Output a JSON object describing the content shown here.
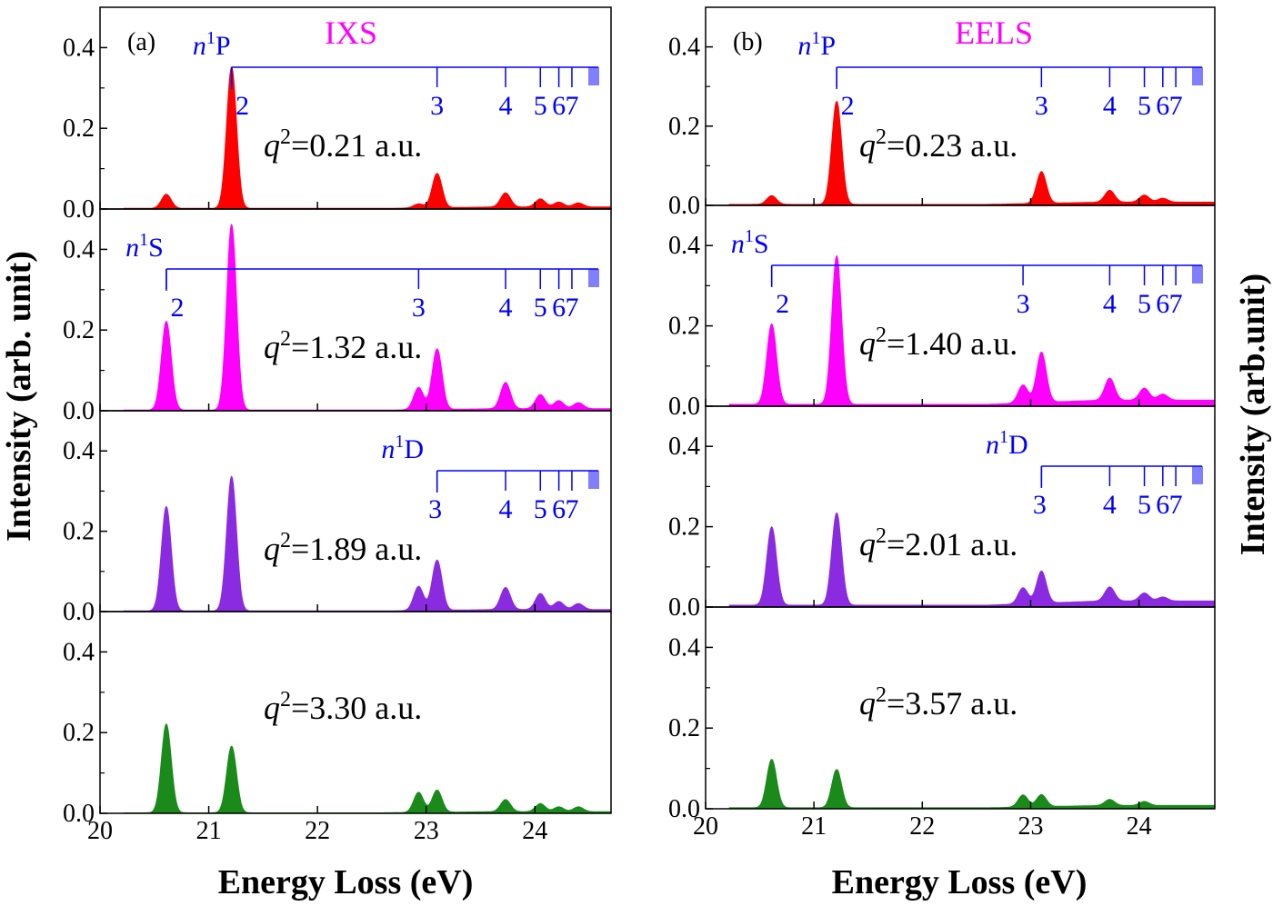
{
  "figure": {
    "xlabel": "Energy Loss (eV)",
    "ylabel_left": "Intensity (arb. unit)",
    "ylabel_right": "Intensity (arb.unit)"
  },
  "chart_data": [
    {
      "type": "area",
      "panel": "(a)",
      "method": "IXS",
      "method_color": "#ff00ff",
      "xlim": [
        20,
        24.7
      ],
      "ylim": [
        0,
        0.5
      ],
      "x_ticks": [
        "20",
        "21",
        "22",
        "23",
        "24"
      ],
      "y_ticks": [
        "0.0",
        "0.2",
        "0.4"
      ],
      "rows": [
        {
          "q_label": "=0.21 a.u.",
          "color": "#ff0000",
          "baseline": 0.005,
          "peaks": [
            [
              20.61,
              0.035
            ],
            [
              21.21,
              0.35
            ],
            [
              22.93,
              0.01
            ],
            [
              23.1,
              0.085
            ],
            [
              23.73,
              0.035
            ],
            [
              24.05,
              0.02
            ],
            [
              24.22,
              0.012
            ],
            [
              24.4,
              0.01
            ]
          ],
          "series": {
            "name": "P",
            "prefix": "n",
            "sup": "1",
            "start": 21.21,
            "marks": [
              [
                "2",
                21.21
              ],
              [
                "3",
                23.1
              ],
              [
                "4",
                23.73
              ],
              [
                "5",
                24.05
              ],
              [
                "6",
                24.22
              ],
              [
                "7",
                24.34
              ]
            ]
          }
        },
        {
          "q_label": "=1.32 a.u.",
          "color": "#ff00ff",
          "baseline": 0.005,
          "peaks": [
            [
              20.61,
              0.22
            ],
            [
              21.21,
              0.46
            ],
            [
              22.93,
              0.055
            ],
            [
              23.1,
              0.15
            ],
            [
              23.73,
              0.065
            ],
            [
              24.05,
              0.035
            ],
            [
              24.22,
              0.02
            ],
            [
              24.4,
              0.015
            ]
          ],
          "series": {
            "name": "S",
            "prefix": "n",
            "sup": "1",
            "start": 20.61,
            "marks": [
              [
                "2",
                20.61
              ],
              [
                "3",
                22.93
              ],
              [
                "4",
                23.73
              ],
              [
                "5",
                24.05
              ],
              [
                "6",
                24.22
              ],
              [
                "7",
                24.34
              ]
            ]
          }
        },
        {
          "q_label": "=1.89 a.u.",
          "color": "#8a2be2",
          "baseline": 0.005,
          "peaks": [
            [
              20.61,
              0.26
            ],
            [
              21.21,
              0.335
            ],
            [
              22.93,
              0.06
            ],
            [
              23.1,
              0.125
            ],
            [
              23.73,
              0.055
            ],
            [
              24.05,
              0.04
            ],
            [
              24.22,
              0.02
            ],
            [
              24.4,
              0.015
            ]
          ],
          "series": {
            "name": "D",
            "prefix": "n",
            "sup": "1",
            "start": 23.1,
            "marks": [
              [
                "3",
                23.1
              ],
              [
                "4",
                23.73
              ],
              [
                "5",
                24.05
              ],
              [
                "6",
                24.22
              ],
              [
                "7",
                24.34
              ]
            ]
          }
        },
        {
          "q_label": "=3.30 a.u.",
          "color": "#1a8a1a",
          "baseline": 0.004,
          "peaks": [
            [
              20.61,
              0.22
            ],
            [
              21.21,
              0.165
            ],
            [
              22.93,
              0.05
            ],
            [
              23.1,
              0.055
            ],
            [
              23.73,
              0.03
            ],
            [
              24.05,
              0.02
            ],
            [
              24.22,
              0.012
            ],
            [
              24.4,
              0.012
            ]
          ],
          "series": null
        }
      ]
    },
    {
      "type": "area",
      "panel": "(b)",
      "method": "EELS",
      "method_color": "#ff00ff",
      "xlim": [
        20,
        24.7
      ],
      "ylim": [
        0,
        0.5
      ],
      "x_ticks": [
        "20",
        "21",
        "22",
        "23",
        "24"
      ],
      "y_ticks": [
        "0.0",
        "0.2",
        "0.4"
      ],
      "rows": [
        {
          "q_label": "=0.23 a.u.",
          "color": "#ff0000",
          "baseline": 0.008,
          "peaks": [
            [
              20.61,
              0.022
            ],
            [
              21.21,
              0.26
            ],
            [
              23.1,
              0.08
            ],
            [
              23.73,
              0.03
            ],
            [
              24.05,
              0.018
            ],
            [
              24.22,
              0.01
            ]
          ],
          "series": {
            "name": "P",
            "prefix": "n",
            "sup": "1",
            "start": 21.21,
            "marks": [
              [
                "2",
                21.21
              ],
              [
                "3",
                23.1
              ],
              [
                "4",
                23.73
              ],
              [
                "5",
                24.05
              ],
              [
                "6",
                24.22
              ],
              [
                "7",
                24.34
              ]
            ]
          }
        },
        {
          "q_label": "=1.40 a.u.",
          "color": "#ff00ff",
          "baseline": 0.015,
          "peaks": [
            [
              20.61,
              0.2
            ],
            [
              21.21,
              0.37
            ],
            [
              22.93,
              0.045
            ],
            [
              23.1,
              0.125
            ],
            [
              23.73,
              0.055
            ],
            [
              24.05,
              0.03
            ],
            [
              24.22,
              0.015
            ]
          ],
          "series": {
            "name": "S",
            "prefix": "n",
            "sup": "1",
            "start": 20.61,
            "marks": [
              [
                "2",
                20.61
              ],
              [
                "3",
                22.93
              ],
              [
                "4",
                23.73
              ],
              [
                "5",
                24.05
              ],
              [
                "6",
                24.22
              ],
              [
                "7",
                24.34
              ]
            ]
          }
        },
        {
          "q_label": "=2.01 a.u.",
          "color": "#8a2be2",
          "baseline": 0.015,
          "peaks": [
            [
              20.61,
              0.195
            ],
            [
              21.21,
              0.23
            ],
            [
              22.93,
              0.04
            ],
            [
              23.1,
              0.08
            ],
            [
              23.73,
              0.035
            ],
            [
              24.05,
              0.02
            ],
            [
              24.22,
              0.01
            ]
          ],
          "series": {
            "name": "D",
            "prefix": "n",
            "sup": "1",
            "start": 23.1,
            "marks": [
              [
                "3",
                23.1
              ],
              [
                "4",
                23.73
              ],
              [
                "5",
                24.05
              ],
              [
                "6",
                24.22
              ],
              [
                "7",
                24.34
              ]
            ]
          }
        },
        {
          "q_label": "=3.57 a.u.",
          "color": "#1a8a1a",
          "baseline": 0.008,
          "peaks": [
            [
              20.61,
              0.12
            ],
            [
              21.21,
              0.095
            ],
            [
              22.93,
              0.03
            ],
            [
              23.1,
              0.03
            ],
            [
              23.73,
              0.015
            ],
            [
              24.05,
              0.01
            ]
          ],
          "series": null
        }
      ]
    }
  ]
}
